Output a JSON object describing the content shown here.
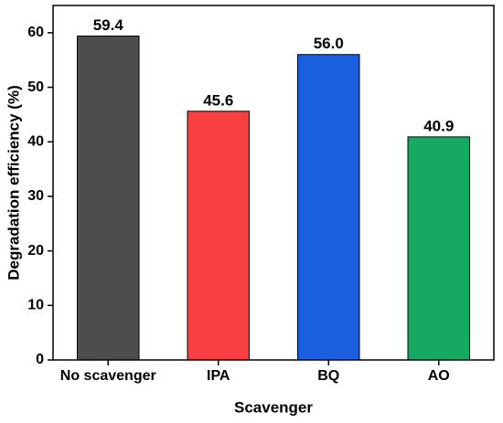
{
  "chart_data": {
    "type": "bar",
    "x_label": "Scavenger",
    "y_label": "Degradation efficiency (%)",
    "categories": [
      "No scavenger",
      "IPA",
      "BQ",
      "AO"
    ],
    "values": [
      59.4,
      45.6,
      56.0,
      40.9
    ],
    "value_labels": [
      "59.4",
      "45.6",
      "56.0",
      "40.9"
    ],
    "colors": [
      "#4d4d4d",
      "#f84040",
      "#1a5fe0",
      "#17a862"
    ],
    "ylim": [
      0,
      65
    ],
    "yticks": [
      0,
      10,
      20,
      30,
      40,
      50,
      60
    ]
  }
}
